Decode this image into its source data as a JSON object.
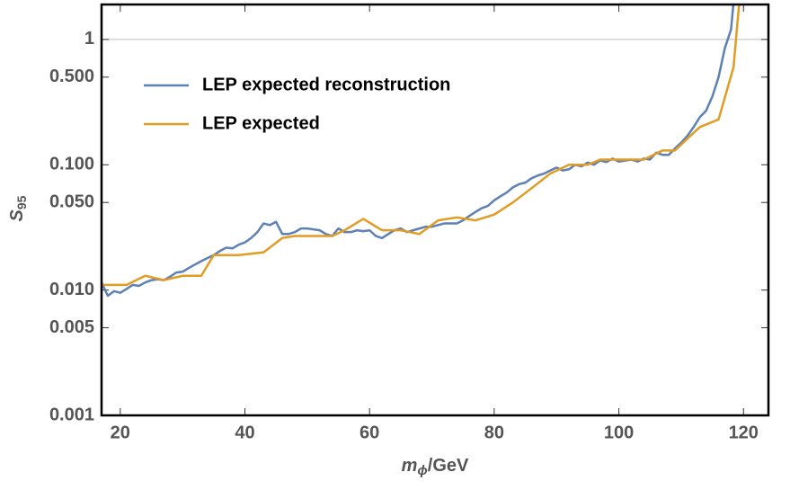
{
  "chart_data": {
    "type": "line",
    "ylabel": "S",
    "ylabel_sub": "95",
    "xlabel": "m",
    "xlabel_sub": "ϕ",
    "xlabel_unit": "/GeV",
    "xlim": [
      17,
      124
    ],
    "xticks": [
      20,
      40,
      60,
      80,
      100,
      120
    ],
    "ylim": [
      0.001,
      1.9
    ],
    "log_y": true,
    "yticks": [
      0.001,
      0.005,
      {
        "value": 0.01,
        "label": "0.010"
      },
      {
        "value": 0.05,
        "label": "0.050"
      },
      {
        "value": 0.1,
        "label": "0.100"
      },
      {
        "value": 0.5,
        "label": "0.500"
      },
      1
    ],
    "reference_line": 1,
    "legend": "upper-left",
    "series": [
      {
        "name": "LEP expected reconstruction",
        "color": "#5e81b5",
        "x": [
          17,
          18,
          19,
          20,
          21,
          22,
          23,
          24,
          25,
          26,
          27,
          28,
          29,
          30,
          31,
          32,
          33,
          34,
          35,
          36,
          37,
          38,
          39,
          40,
          41,
          42,
          43,
          44,
          45,
          46,
          47,
          48,
          49,
          50,
          51,
          52,
          53,
          54,
          55,
          56,
          57,
          58,
          59,
          60,
          61,
          62,
          63,
          64,
          65,
          66,
          67,
          68,
          69,
          70,
          71,
          72,
          73,
          74,
          75,
          76,
          77,
          78,
          79,
          80,
          81,
          82,
          83,
          84,
          85,
          86,
          87,
          88,
          89,
          90,
          91,
          92,
          93,
          94,
          95,
          96,
          97,
          98,
          99,
          100,
          101,
          102,
          103,
          104,
          105,
          106,
          107,
          108,
          109,
          110,
          111,
          112,
          113,
          114,
          115,
          116,
          117,
          118,
          118.6
        ],
        "values": [
          0.0115,
          0.009,
          0.0098,
          0.0095,
          0.0102,
          0.011,
          0.0108,
          0.0115,
          0.012,
          0.0122,
          0.012,
          0.0128,
          0.0138,
          0.014,
          0.015,
          0.016,
          0.017,
          0.018,
          0.019,
          0.0205,
          0.0218,
          0.0215,
          0.023,
          0.024,
          0.026,
          0.029,
          0.034,
          0.033,
          0.035,
          0.028,
          0.028,
          0.029,
          0.031,
          0.031,
          0.0305,
          0.03,
          0.028,
          0.027,
          0.031,
          0.029,
          0.029,
          0.03,
          0.0295,
          0.03,
          0.027,
          0.026,
          0.028,
          0.03,
          0.031,
          0.029,
          0.03,
          0.031,
          0.032,
          0.032,
          0.033,
          0.034,
          0.034,
          0.034,
          0.036,
          0.039,
          0.042,
          0.045,
          0.047,
          0.052,
          0.056,
          0.06,
          0.066,
          0.07,
          0.072,
          0.078,
          0.082,
          0.085,
          0.09,
          0.095,
          0.09,
          0.092,
          0.1,
          0.097,
          0.104,
          0.1,
          0.108,
          0.105,
          0.112,
          0.106,
          0.108,
          0.11,
          0.106,
          0.112,
          0.11,
          0.125,
          0.12,
          0.12,
          0.135,
          0.15,
          0.17,
          0.2,
          0.24,
          0.27,
          0.35,
          0.5,
          0.85,
          1.2,
          2.5
        ]
      },
      {
        "name": "LEP expected",
        "color": "#e19c24",
        "x": [
          17,
          19,
          21,
          24,
          27,
          30,
          33,
          35,
          39,
          43,
          46,
          48,
          51,
          54,
          56,
          59,
          62,
          65,
          68,
          71,
          74,
          77,
          80,
          83,
          86,
          89,
          92,
          95,
          97,
          102,
          104,
          107,
          109,
          112,
          113,
          116,
          118.4,
          119.5
        ],
        "values": [
          0.011,
          0.011,
          0.011,
          0.013,
          0.012,
          0.013,
          0.013,
          0.019,
          0.019,
          0.02,
          0.026,
          0.027,
          0.027,
          0.027,
          0.03,
          0.037,
          0.03,
          0.03,
          0.028,
          0.036,
          0.038,
          0.036,
          0.04,
          0.05,
          0.065,
          0.085,
          0.1,
          0.1,
          0.11,
          0.11,
          0.11,
          0.13,
          0.13,
          0.18,
          0.2,
          0.23,
          0.6,
          2.5
        ]
      }
    ]
  }
}
